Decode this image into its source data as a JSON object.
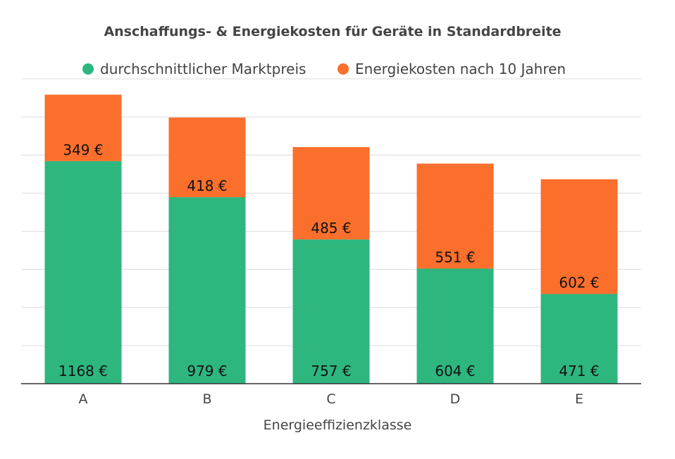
{
  "chart_data": {
    "type": "bar",
    "stacked": true,
    "title": "Anschaffungs- & Energiekosten für Geräte in Standardbreite",
    "xlabel": "Energieeffizienzklasse",
    "ylabel": "",
    "categories": [
      "A",
      "B",
      "C",
      "D",
      "E"
    ],
    "ylim": [
      0,
      1600
    ],
    "y_grid_step": 200,
    "grid": true,
    "y_tick_labels_visible": false,
    "legend_position": "top",
    "value_suffix": " €",
    "series": [
      {
        "name": "durchschnittlicher Marktpreis",
        "color": "#2eb67f",
        "values": [
          1168,
          979,
          757,
          604,
          471
        ]
      },
      {
        "name": "Energiekosten nach 10 Jahren",
        "color": "#fb6f2c",
        "values": [
          349,
          418,
          485,
          551,
          602
        ]
      }
    ]
  }
}
